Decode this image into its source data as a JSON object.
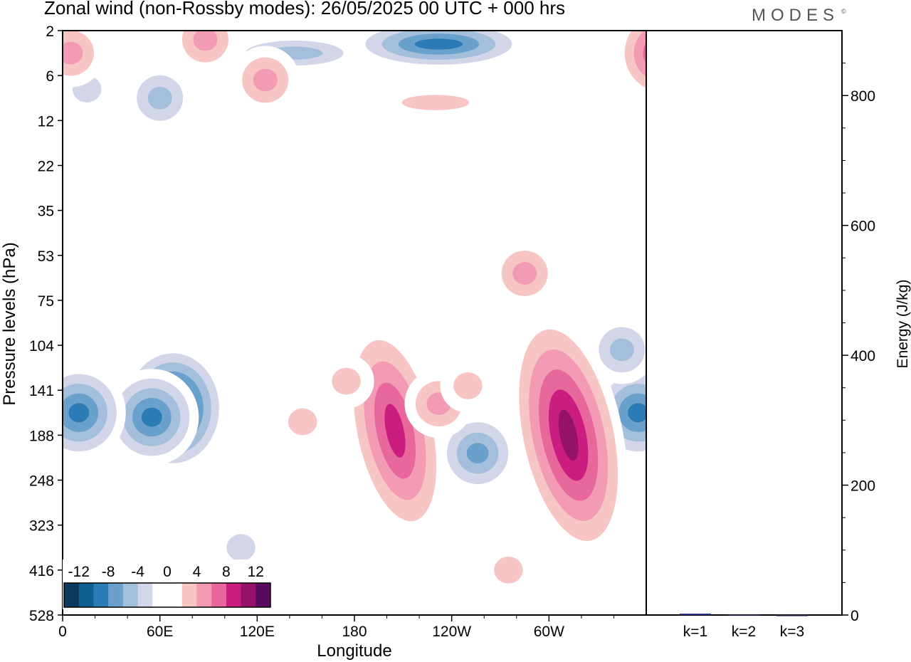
{
  "header": {
    "title": "Zonal wind (non-Rossby modes):  26/05/2025  00 UTC  + 000 hrs",
    "logo_text": "MODES",
    "logo_mark": "©"
  },
  "chart_data": [
    {
      "type": "heatmap",
      "title": "Zonal wind (non-Rossby modes):  26/05/2025  00 UTC  + 000 hrs",
      "xlabel": "Longitude",
      "ylabel": "Pressure levels (hPa)",
      "x_ticks": [
        "0",
        "60E",
        "120E",
        "180",
        "120W",
        "60W"
      ],
      "x_tick_values": [
        0,
        60,
        120,
        180,
        240,
        300
      ],
      "xlim": [
        0,
        360
      ],
      "y_ticks": [
        "2",
        "6",
        "12",
        "22",
        "35",
        "53",
        "75",
        "104",
        "141",
        "188",
        "248",
        "323",
        "416",
        "528"
      ],
      "colorbar": {
        "tick_labels": [
          "-12",
          "-8",
          "-4",
          "0",
          "4",
          "8",
          "12"
        ],
        "levels": [
          -14,
          -12,
          -10,
          -8,
          -6,
          -4,
          -2,
          0,
          2,
          4,
          6,
          8,
          10,
          12,
          14
        ],
        "colors": [
          "#0b3a5c",
          "#0e5f92",
          "#2b7bb6",
          "#6aa0cc",
          "#a3bfdc",
          "#d3d6e8",
          "#ffffff",
          "#ffffff",
          "#f7c5c3",
          "#f39bb5",
          "#e8679c",
          "#cb1d7f",
          "#951269",
          "#5a0a5e"
        ]
      },
      "features": [
        {
          "lon": 68,
          "lev": 8.4,
          "value": -14,
          "shape": "core"
        },
        {
          "lon": 55,
          "lev": 8.6,
          "value": -10,
          "shape": "blob"
        },
        {
          "lon": 10,
          "lev": 8.5,
          "value": -10,
          "shape": "blob"
        },
        {
          "lon": 256,
          "lev": 9.4,
          "value": -8,
          "shape": "blob"
        },
        {
          "lon": 355,
          "lev": 8.5,
          "value": -10,
          "shape": "blob"
        },
        {
          "lon": 345,
          "lev": 7.1,
          "value": -6,
          "shape": "blob"
        },
        {
          "lon": 232,
          "lev": 0.3,
          "value": -10,
          "shape": "band"
        },
        {
          "lon": 143,
          "lev": 0.5,
          "value": -6,
          "shape": "band"
        },
        {
          "lon": 60,
          "lev": 1.5,
          "value": -6,
          "shape": "blob"
        },
        {
          "lon": 15,
          "lev": 1.3,
          "value": -4,
          "shape": "blob"
        },
        {
          "lon": 205,
          "lev": 8.9,
          "value": 10,
          "shape": "tongue"
        },
        {
          "lon": 312,
          "lev": 9.0,
          "value": 12,
          "shape": "tongue"
        },
        {
          "lon": 232,
          "lev": 8.3,
          "value": 6,
          "shape": "blob"
        },
        {
          "lon": 250,
          "lev": 7.9,
          "value": 4,
          "shape": "blob"
        },
        {
          "lon": 148,
          "lev": 8.7,
          "value": 4,
          "shape": "blob"
        },
        {
          "lon": 175,
          "lev": 7.8,
          "value": 4,
          "shape": "blob"
        },
        {
          "lon": 370,
          "lev": 0.5,
          "value": 10,
          "shape": "blob"
        },
        {
          "lon": 5,
          "lev": 0.5,
          "value": 6,
          "shape": "blob"
        },
        {
          "lon": 88,
          "lev": 0.2,
          "value": 6,
          "shape": "blob"
        },
        {
          "lon": 125,
          "lev": 1.1,
          "value": 6,
          "shape": "blob"
        },
        {
          "lon": 230,
          "lev": 1.6,
          "value": 4,
          "shape": "band"
        },
        {
          "lon": 285,
          "lev": 5.4,
          "value": 6,
          "shape": "blob"
        },
        {
          "lon": 110,
          "lev": 11.5,
          "value": -4,
          "shape": "blob"
        },
        {
          "lon": 275,
          "lev": 12.0,
          "value": 4,
          "shape": "blob"
        }
      ]
    },
    {
      "type": "bar",
      "categories": [
        "k=1",
        "k=2",
        "k=3"
      ],
      "values": [
        2,
        1,
        0.5
      ],
      "colors": [
        "#1a237e",
        "#1c1c3c",
        "#1c1c3c"
      ],
      "ylabel": "Energy (J/kg)",
      "ylim": [
        0,
        900
      ],
      "y_ticks": [
        "0",
        "200",
        "400",
        "600",
        "800"
      ],
      "y_tick_values": [
        0,
        200,
        400,
        600,
        800
      ]
    }
  ]
}
